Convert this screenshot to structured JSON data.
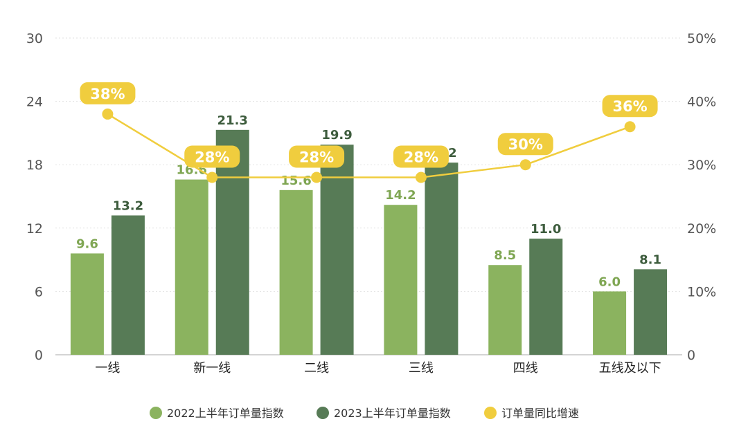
{
  "chart_data": {
    "type": "bar",
    "categories": [
      "一线",
      "新一线",
      "二线",
      "三线",
      "四线",
      "五线及以下"
    ],
    "series": [
      {
        "name": "2022上半年订单量指数",
        "type": "bar",
        "axis": "left",
        "color": "#8bb35f",
        "values": [
          9.6,
          16.6,
          15.6,
          14.2,
          8.5,
          6.0
        ],
        "labels": [
          "9.6",
          "16.6",
          "15.6",
          "14.2",
          "8.5",
          "6.0"
        ]
      },
      {
        "name": "2023上半年订单量指数",
        "type": "bar",
        "axis": "left",
        "color": "#577b56",
        "values": [
          13.2,
          21.3,
          19.9,
          18.2,
          11.0,
          8.1
        ],
        "labels": [
          "13.2",
          "21.3",
          "19.9",
          "18.2",
          "11.0",
          "8.1"
        ]
      },
      {
        "name": "订单量同比增速",
        "type": "line",
        "axis": "right",
        "color": "#f0cd3e",
        "values": [
          38,
          28,
          28,
          28,
          30,
          36
        ],
        "labels": [
          "38%",
          "28%",
          "28%",
          "28%",
          "30%",
          "36%"
        ]
      }
    ],
    "y_left": {
      "lim": [
        0,
        30
      ],
      "ticks": [
        "0",
        "6",
        "12",
        "18",
        "24",
        "30"
      ]
    },
    "y_right": {
      "lim": [
        0,
        50
      ],
      "ticks": [
        "0",
        "10%",
        "20%",
        "30%",
        "40%",
        "50%"
      ]
    },
    "grid": true,
    "legend_position": "bottom"
  }
}
